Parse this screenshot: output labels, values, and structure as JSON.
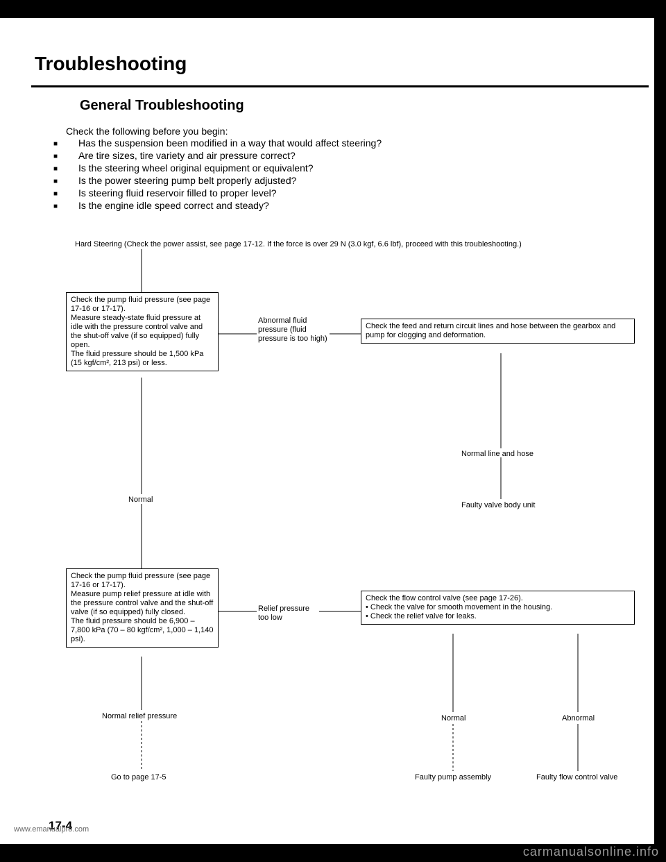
{
  "title": "Troubleshooting",
  "subtitle": "General Troubleshooting",
  "intro_lead": "Check the following before you begin:",
  "intro_items": [
    "Has the suspension been modified in a way that would affect steering?",
    "Are tire sizes, tire variety and air pressure correct?",
    "Is the steering wheel original equipment or equivalent?",
    "Is the power steering pump belt properly adjusted?",
    "Is steering fluid reservoir filled to proper level?",
    "Is the engine idle speed correct and steady?"
  ],
  "hard_steering": "Hard Steering (Check the power assist, see page 17-12. If the force is over 29 N (3.0 kgf, 6.6 lbf), proceed with this troubleshooting.)",
  "box1": "Check the pump fluid pressure (see page 17-16 or 17-17).\nMeasure steady-state fluid pressure at idle with the pressure control valve and the shut-off valve (if so equipped) fully open.\nThe fluid pressure should be 1,500 kPa (15 kgf/cm², 213 psi) or less.",
  "conn1": "Abnormal fluid pressure (fluid pressure is too high)",
  "box2": "Check the feed and return circuit lines and hose between the gearbox and pump for clogging and deformation.",
  "label_normal_line": "Normal line and hose",
  "label_faulty_valve_body": "Faulty valve body unit",
  "label_normal1": "Normal",
  "box3": "Check the pump fluid pressure (see page 17-16 or 17-17).\nMeasure pump relief pressure at idle with the pressure control valve and the shut-off valve (if so equipped) fully closed.\nThe fluid pressure should be 6,900 – 7,800 kPa (70 – 80 kgf/cm², 1,000 – 1,140 psi).",
  "conn2": "Relief pressure too low",
  "box4_lead": "Check the flow control valve (see page 17-26).",
  "box4_items": [
    "Check the valve for smooth movement in the housing.",
    "Check the relief valve for leaks."
  ],
  "label_normal_relief": "Normal relief pressure",
  "label_goto": "Go to page 17-5",
  "label_normal2": "Normal",
  "label_abnormal": "Abnormal",
  "label_faulty_pump": "Faulty pump assembly",
  "label_faulty_flow": "Faulty flow control valve",
  "page_number": "17-4",
  "watermark1": "www.emanualpro.com",
  "watermark2": "carmanualsonline.info",
  "colors": {
    "bg": "#000000",
    "page": "#ffffff",
    "text": "#000000"
  }
}
